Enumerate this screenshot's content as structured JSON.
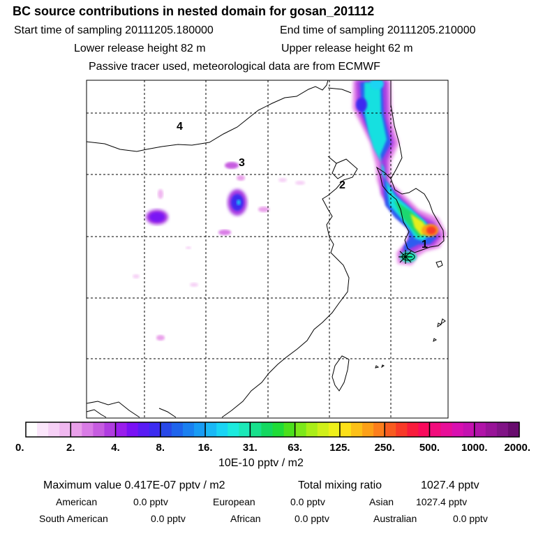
{
  "header": {
    "title": "BC  source contributions in nested domain for gosan_201112",
    "start_label": "Start time of sampling 20111205.180000",
    "end_label": "End time of sampling 20111205.210000",
    "lower_label": "Lower release height   82 m",
    "upper_label": "Upper release height   62 m",
    "tracer_note": "Passive tracer used, meteorological data are from ECMWF"
  },
  "map": {
    "region_labels": [
      "1",
      "2",
      "3",
      "4"
    ]
  },
  "colorbar": {
    "tick_labels": [
      "0.",
      "2.",
      "4.",
      "8.",
      "16.",
      "31.",
      "63.",
      "125.",
      "250.",
      "500.",
      "1000.",
      "2000."
    ],
    "colors": [
      "#ffffff",
      "#fbe6fb",
      "#f6d0f6",
      "#f0b8f0",
      "#e9a0ea",
      "#d97ce6",
      "#c65ce0",
      "#b03ce0",
      "#9a1eec",
      "#7a12f4",
      "#5a1cf4",
      "#3c2cf0",
      "#2848e8",
      "#1e64ec",
      "#1a80f0",
      "#189cf4",
      "#1ab8f6",
      "#1ad4f4",
      "#1ceade",
      "#1ce8b8",
      "#18e08c",
      "#14d860",
      "#20dc38",
      "#4ce01c",
      "#7ce81a",
      "#aaee18",
      "#d0f01a",
      "#eef01a",
      "#fce018",
      "#fcc018",
      "#fca018",
      "#fc7e1c",
      "#f85c20",
      "#f83a28",
      "#f81c3c",
      "#f80a5c",
      "#f20c7c",
      "#e80e98",
      "#d810b0",
      "#c412b0",
      "#b014a8",
      "#981498",
      "#801486",
      "#680c6e"
    ],
    "unit_label": "10E-10 pptv / m2"
  },
  "summary": {
    "max_label": "Maximum value  0.417E-07 pptv / m2",
    "total_label": "Total mixing ratio",
    "total_value": "1027.4 pptv",
    "rows": [
      [
        {
          "name": "American",
          "value": "0.0 pptv"
        },
        {
          "name": "European",
          "value": "0.0 pptv"
        },
        {
          "name": "Asian",
          "value": "1027.4 pptv"
        }
      ],
      [
        {
          "name": "South American",
          "value": "0.0 pptv"
        },
        {
          "name": "African",
          "value": "0.0 pptv"
        },
        {
          "name": "Australian",
          "value": "0.0 pptv"
        }
      ]
    ]
  }
}
